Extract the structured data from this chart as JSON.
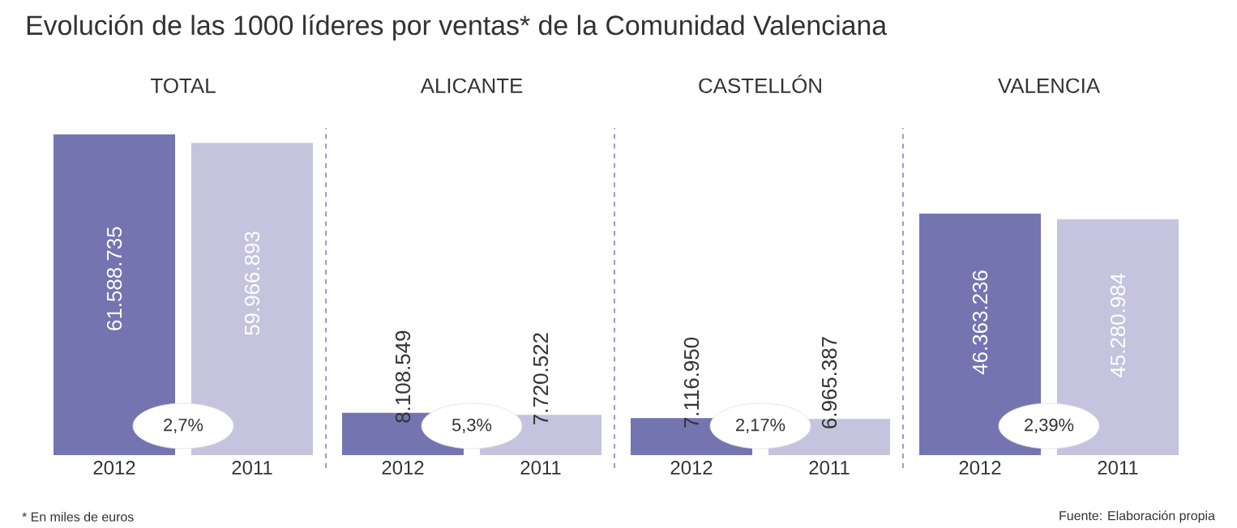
{
  "chart_data": [
    {
      "type": "bar",
      "title": "Evolución de las 1000 líderes por ventas* de la Comunidad Valenciana",
      "subtitle": "TOTAL",
      "categories": [
        "2012",
        "2011"
      ],
      "values": [
        61588735,
        59966893
      ],
      "colors": [
        "#7474b0",
        "#c4c4df"
      ],
      "value_labels": [
        "61.588.735",
        "59.966.893"
      ],
      "annotations": [
        "2,7%",
        "* En miles de euros"
      ]
    },
    {
      "type": "bar",
      "subtitle": "ALICANTE",
      "categories": [
        "2012",
        "2011"
      ],
      "values": [
        8108549,
        7720522
      ],
      "colors": [
        "#7474b0",
        "#c4c4df"
      ],
      "value_labels": [
        "8.108.549",
        "7.720.522"
      ],
      "annotations": [
        "5,3%"
      ]
    },
    {
      "type": "bar",
      "subtitle": "CASTELLÓN",
      "categories": [
        "2012",
        "2011"
      ],
      "values": [
        7116950,
        6965387
      ],
      "colors": [
        "#7474b0",
        "#c4c4df"
      ],
      "value_labels": [
        "7.116.950",
        "6.965.387"
      ],
      "annotations": [
        "2,17%"
      ]
    },
    {
      "type": "bar",
      "subtitle": "VALENCIA",
      "categories": [
        "2012",
        "2011"
      ],
      "values": [
        46363236,
        45280984
      ],
      "colors": [
        "#7474b0",
        "#c4c4df"
      ],
      "value_labels": [
        "46.363.236",
        "45.280.984"
      ],
      "annotations": [
        "2,39%",
        "Fuente: Elaboración propia"
      ]
    }
  ]
}
